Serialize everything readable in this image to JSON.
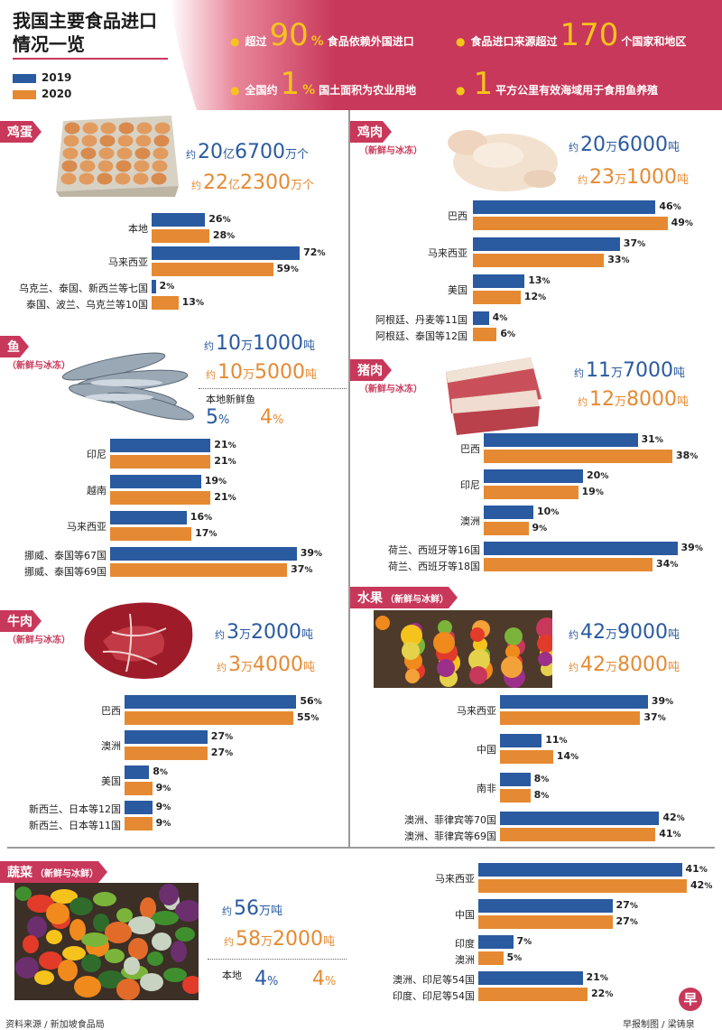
{
  "title": [
    "我国主要食品进口",
    "情况一览"
  ],
  "legend": [
    {
      "label": "2019",
      "color": "#2a5aa0"
    },
    {
      "label": "2020",
      "color": "#e58a33"
    }
  ],
  "highlights": [
    {
      "pre": "超过",
      "num": "90",
      "pct": "%",
      "post": "食品依赖外国进口"
    },
    {
      "pre": "食品进口来源超过",
      "num": "170",
      "pct": "",
      "post": "个国家和地区"
    },
    {
      "pre": "全国约",
      "num": "1",
      "pct": "%",
      "post": "国土面积为农业用地"
    },
    {
      "pre": "",
      "num": "1",
      "pct": "",
      "post": "平方公里有效海域用于食用鱼养殖"
    }
  ],
  "colors": {
    "accent": "#c8385a",
    "y2019": "#2a5aa0",
    "y2020": "#e58a33",
    "highlight": "#f6c31c"
  },
  "chart_data": [
    {
      "type": "bar",
      "name": "鸡蛋",
      "sub": "",
      "totals": {
        "2019": [
          {
            "y": "约"
          },
          {
            "n": "20"
          },
          {
            "u": "亿"
          },
          {
            "n": "6700"
          },
          {
            "u": "万个"
          }
        ],
        "2020": [
          {
            "y": "约"
          },
          {
            "n": "22"
          },
          {
            "u": "亿"
          },
          {
            "n": "2300"
          },
          {
            "u": "万个"
          }
        ]
      },
      "categories": [
        [
          "本地",
          "本地"
        ],
        [
          "马来西亚",
          "马来西亚"
        ],
        [
          "乌克兰、泰国、新西兰等七国",
          "泰国、波兰、乌克兰等10国"
        ]
      ],
      "series": [
        {
          "name": "2019",
          "values": [
            26,
            72,
            2
          ]
        },
        {
          "name": "2020",
          "values": [
            28,
            59,
            13
          ]
        }
      ]
    },
    {
      "type": "bar",
      "name": "鸡肉",
      "sub": "（新鲜与冰冻）",
      "totals": {
        "2019": [
          {
            "y": "约"
          },
          {
            "n": "20"
          },
          {
            "u": "万"
          },
          {
            "n": "6000"
          },
          {
            "u": "吨"
          }
        ],
        "2020": [
          {
            "y": "约"
          },
          {
            "n": "23"
          },
          {
            "u": "万"
          },
          {
            "n": "1000"
          },
          {
            "u": "吨"
          }
        ]
      },
      "categories": [
        [
          "巴西",
          "巴西"
        ],
        [
          "马来西亚",
          "马来西亚"
        ],
        [
          "美国",
          "美国"
        ],
        [
          "阿根廷、丹麦等11国",
          "阿根廷、泰国等12国"
        ]
      ],
      "series": [
        {
          "name": "2019",
          "values": [
            46,
            37,
            13,
            4
          ]
        },
        {
          "name": "2020",
          "values": [
            49,
            33,
            12,
            6
          ]
        }
      ]
    },
    {
      "type": "bar",
      "name": "鱼",
      "sub": "（新鲜与冰冻）",
      "totals": {
        "2019": [
          {
            "y": "约"
          },
          {
            "n": "10"
          },
          {
            "u": "万"
          },
          {
            "n": "1000"
          },
          {
            "u": "吨"
          }
        ],
        "2020": [
          {
            "y": "约"
          },
          {
            "n": "10"
          },
          {
            "u": "万"
          },
          {
            "n": "5000"
          },
          {
            "u": "吨"
          }
        ]
      },
      "local": {
        "label": "本地新鲜鱼",
        "values": [
          "5",
          "4"
        ],
        "unit": "%"
      },
      "categories": [
        [
          "印尼",
          "印尼"
        ],
        [
          "越南",
          "越南"
        ],
        [
          "马来西亚",
          "马来西亚"
        ],
        [
          "挪威、泰国等67国",
          "挪威、泰国等69国"
        ]
      ],
      "series": [
        {
          "name": "2019",
          "values": [
            21,
            19,
            16,
            39
          ]
        },
        {
          "name": "2020",
          "values": [
            21,
            21,
            17,
            37
          ]
        }
      ]
    },
    {
      "type": "bar",
      "name": "猪肉",
      "sub": "（新鲜与冰冻）",
      "totals": {
        "2019": [
          {
            "y": "约"
          },
          {
            "n": "11"
          },
          {
            "u": "万"
          },
          {
            "n": "7000"
          },
          {
            "u": "吨"
          }
        ],
        "2020": [
          {
            "y": "约"
          },
          {
            "n": "12"
          },
          {
            "u": "万"
          },
          {
            "n": "8000"
          },
          {
            "u": "吨"
          }
        ]
      },
      "categories": [
        [
          "巴西",
          "巴西"
        ],
        [
          "印尼",
          "印尼"
        ],
        [
          "澳洲",
          "澳洲"
        ],
        [
          "荷兰、西班牙等16国",
          "荷兰、西班牙等18国"
        ]
      ],
      "series": [
        {
          "name": "2019",
          "values": [
            31,
            20,
            10,
            39
          ]
        },
        {
          "name": "2020",
          "values": [
            38,
            19,
            9,
            34
          ]
        }
      ]
    },
    {
      "type": "bar",
      "name": "牛肉",
      "sub": "（新鲜与冰冻）",
      "totals": {
        "2019": [
          {
            "y": "约"
          },
          {
            "n": "3"
          },
          {
            "u": "万"
          },
          {
            "n": "2000"
          },
          {
            "u": "吨"
          }
        ],
        "2020": [
          {
            "y": "约"
          },
          {
            "n": "3"
          },
          {
            "u": "万"
          },
          {
            "n": "4000"
          },
          {
            "u": "吨"
          }
        ]
      },
      "categories": [
        [
          "巴西",
          "巴西"
        ],
        [
          "澳洲",
          "澳洲"
        ],
        [
          "美国",
          "美国"
        ],
        [
          "新西兰、日本等12国",
          "新西兰、日本等11国"
        ]
      ],
      "series": [
        {
          "name": "2019",
          "values": [
            56,
            27,
            8,
            9
          ]
        },
        {
          "name": "2020",
          "values": [
            55,
            27,
            9,
            9
          ]
        }
      ]
    },
    {
      "type": "bar",
      "name": "水果",
      "sub": "（新鲜与冰鲜）",
      "totals": {
        "2019": [
          {
            "y": "约"
          },
          {
            "n": "42"
          },
          {
            "u": "万"
          },
          {
            "n": "9000"
          },
          {
            "u": "吨"
          }
        ],
        "2020": [
          {
            "y": "约"
          },
          {
            "n": "42"
          },
          {
            "u": "万"
          },
          {
            "n": "8000"
          },
          {
            "u": "吨"
          }
        ]
      },
      "categories": [
        [
          "马来西亚",
          "马来西亚"
        ],
        [
          "中国",
          "中国"
        ],
        [
          "南非",
          "南非"
        ],
        [
          "澳洲、菲律宾等70国",
          "澳洲、菲律宾等69国"
        ]
      ],
      "series": [
        {
          "name": "2019",
          "values": [
            39,
            11,
            8,
            42
          ]
        },
        {
          "name": "2020",
          "values": [
            37,
            14,
            8,
            41
          ]
        }
      ]
    },
    {
      "type": "bar",
      "name": "蔬菜",
      "sub": "（新鲜与冰鲜）",
      "totals": {
        "2019": [
          {
            "y": "约"
          },
          {
            "n": "56"
          },
          {
            "u": "万吨"
          }
        ],
        "2020": [
          {
            "y": "约"
          },
          {
            "n": "58"
          },
          {
            "u": "万"
          },
          {
            "n": "2000"
          },
          {
            "u": "吨"
          }
        ]
      },
      "local": {
        "label": "本地",
        "values": [
          "4",
          "4"
        ],
        "unit": "%"
      },
      "categories": [
        [
          "马来西亚",
          "马来西亚"
        ],
        [
          "中国",
          "中国"
        ],
        [
          "印度",
          "澳洲"
        ],
        [
          "澳洲、印尼等54国",
          "印度、印尼等54国"
        ]
      ],
      "series": [
        {
          "name": "2019",
          "values": [
            41,
            27,
            7,
            21
          ]
        },
        {
          "name": "2020",
          "values": [
            42,
            27,
            5,
            22
          ]
        }
      ]
    }
  ],
  "footer": {
    "source": "资料来源 / 新加坡食品局",
    "credit": "早报制图 / 梁铸泉",
    "logo": "早"
  }
}
